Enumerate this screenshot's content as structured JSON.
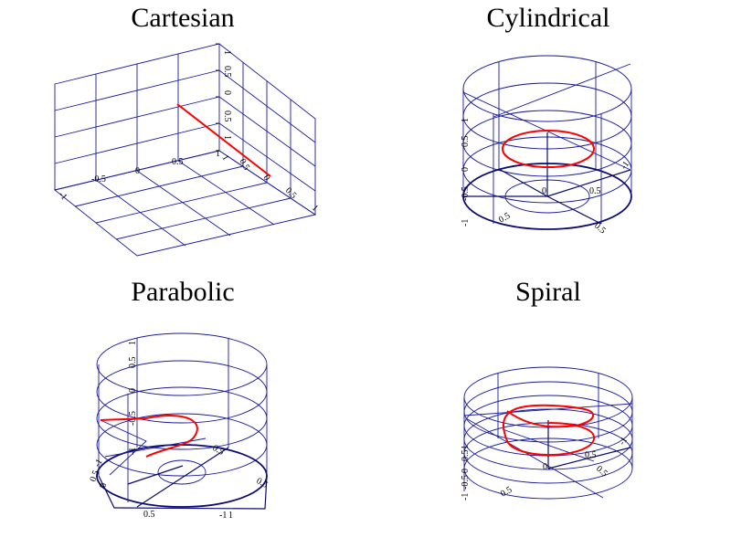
{
  "chart_data": [
    {
      "type": "line3d",
      "title": "Cartesian",
      "xlim": [
        -1,
        1
      ],
      "ylim": [
        -1,
        1
      ],
      "zlim": [
        -1,
        1
      ],
      "tick_labels_front": [
        "-1",
        "-0.5",
        "0",
        "0.5",
        "1"
      ],
      "tick_labels_right": [
        "1",
        "0.5",
        "0",
        "0.5",
        "1"
      ],
      "tick_labels_vertical": [
        "1",
        "0.5",
        "0",
        "0.5",
        "1"
      ],
      "grid": true,
      "series_color": "#ff0000",
      "grid_color": "#1a1aa0"
    },
    {
      "type": "line3d",
      "title": "Cylindrical",
      "tick_labels_vertical": [
        "-1",
        "-0.5",
        "0",
        "0.5",
        "1"
      ],
      "tick_labels_base": [
        "0.5",
        "0",
        "0.5",
        "0.5",
        "-1"
      ],
      "grid": true,
      "series_color": "#ff0000",
      "grid_color": "#1a1aa0"
    },
    {
      "type": "line3d",
      "title": "Parabolic",
      "tick_labels_vertical": [
        "-1",
        "-0.5",
        "0",
        "0.5",
        "1"
      ],
      "tick_labels_base": [
        "0.5",
        "0.5",
        "0.5",
        "-1",
        "0",
        "-1",
        "1",
        "0.5"
      ],
      "grid": true,
      "series_color": "#ff0000",
      "grid_color": "#1a1aa0"
    },
    {
      "type": "line3d",
      "title": "Spiral",
      "tick_labels_vertical": [
        "-1",
        "-0.5",
        "0",
        "0.5",
        "1"
      ],
      "tick_labels_base": [
        "0.5",
        "0",
        "0.5",
        "0.5",
        "-1"
      ],
      "grid": true,
      "series_color": "#ff0000",
      "grid_color": "#1a1aa0"
    }
  ]
}
